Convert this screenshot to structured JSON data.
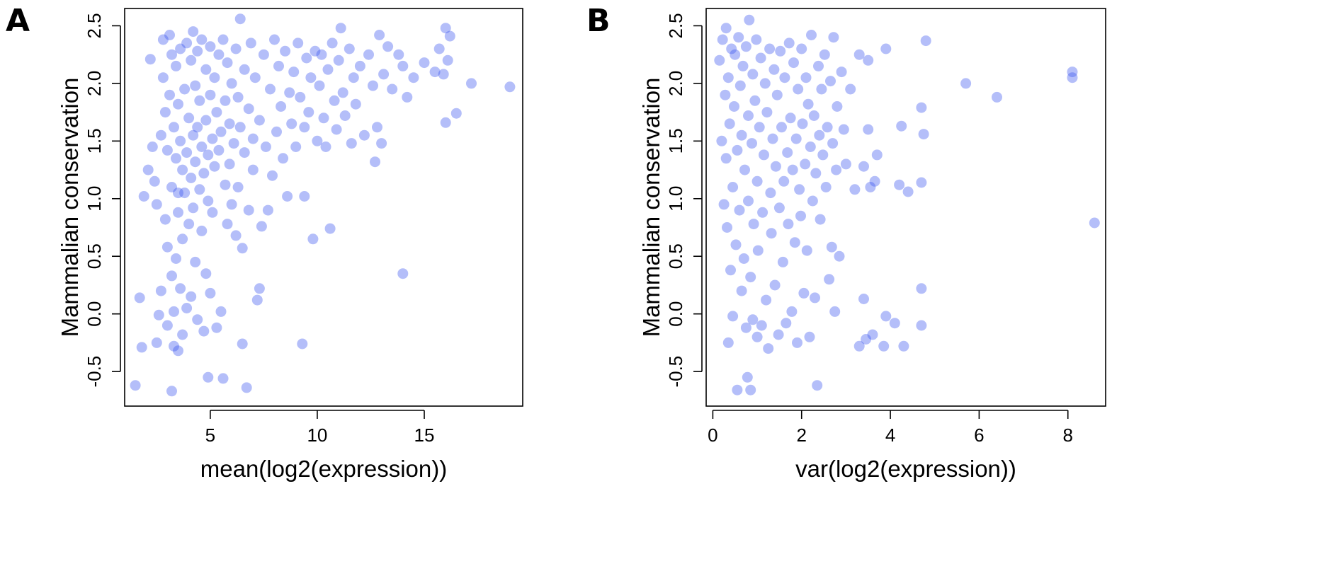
{
  "point_color": "#3b55f0",
  "chart_data": [
    {
      "type": "scatter",
      "panel_label": "A",
      "xlabel": "mean(log2(expression))",
      "ylabel": "Mammalian conservation",
      "xlim": [
        1.0,
        19.6
      ],
      "ylim": [
        -0.8,
        2.65
      ],
      "xticks": [
        5,
        10,
        15
      ],
      "yticks": [
        -0.5,
        0.0,
        0.5,
        1.0,
        1.5,
        2.0,
        2.5
      ],
      "ytick_labels": [
        "-0.5",
        "0.0",
        "0.5",
        "1.0",
        "1.5",
        "2.0",
        "2.5"
      ],
      "grid": false,
      "points": [
        [
          1.5,
          -0.62
        ],
        [
          1.8,
          -0.29
        ],
        [
          1.7,
          0.14
        ],
        [
          1.9,
          1.02
        ],
        [
          2.1,
          1.25
        ],
        [
          2.3,
          1.45
        ],
        [
          2.2,
          2.21
        ],
        [
          2.4,
          1.15
        ],
        [
          2.5,
          0.95
        ],
        [
          2.5,
          -0.25
        ],
        [
          2.6,
          -0.01
        ],
        [
          2.7,
          0.2
        ],
        [
          2.7,
          1.55
        ],
        [
          2.8,
          2.05
        ],
        [
          2.8,
          2.38
        ],
        [
          2.9,
          0.82
        ],
        [
          2.9,
          1.75
        ],
        [
          3.0,
          0.58
        ],
        [
          3.0,
          1.42
        ],
        [
          3.0,
          -0.1
        ],
        [
          3.1,
          2.42
        ],
        [
          3.1,
          1.9
        ],
        [
          3.2,
          0.33
        ],
        [
          3.2,
          1.1
        ],
        [
          3.2,
          2.25
        ],
        [
          3.2,
          -0.67
        ],
        [
          3.3,
          0.02
        ],
        [
          3.3,
          1.62
        ],
        [
          3.3,
          -0.28
        ],
        [
          3.4,
          0.48
        ],
        [
          3.4,
          1.35
        ],
        [
          3.4,
          2.15
        ],
        [
          3.5,
          0.88
        ],
        [
          3.5,
          1.82
        ],
        [
          3.5,
          -0.32
        ],
        [
          3.6,
          0.22
        ],
        [
          3.6,
          1.5
        ],
        [
          3.6,
          2.3
        ],
        [
          3.7,
          0.65
        ],
        [
          3.7,
          1.25
        ],
        [
          3.7,
          -0.18
        ],
        [
          3.8,
          1.95
        ],
        [
          3.8,
          1.05
        ],
        [
          3.9,
          2.35
        ],
        [
          3.9,
          0.05
        ],
        [
          3.9,
          1.4
        ],
        [
          4.0,
          0.78
        ],
        [
          4.0,
          1.7
        ],
        [
          4.1,
          2.2
        ],
        [
          4.1,
          0.15
        ],
        [
          4.1,
          1.18
        ],
        [
          4.2,
          1.55
        ],
        [
          4.2,
          2.45
        ],
        [
          4.2,
          0.92
        ],
        [
          4.3,
          1.32
        ],
        [
          4.3,
          1.98
        ],
        [
          4.3,
          0.45
        ],
        [
          4.4,
          1.62
        ],
        [
          4.4,
          2.28
        ],
        [
          4.4,
          -0.05
        ],
        [
          4.5,
          1.08
        ],
        [
          4.5,
          1.85
        ],
        [
          4.6,
          0.72
        ],
        [
          4.6,
          1.45
        ],
        [
          4.6,
          2.38
        ],
        [
          4.7,
          1.22
        ],
        [
          4.7,
          -0.15
        ],
        [
          4.8,
          2.12
        ],
        [
          4.8,
          0.35
        ],
        [
          4.8,
          1.68
        ],
        [
          4.9,
          0.98
        ],
        [
          4.9,
          1.38
        ],
        [
          4.9,
          -0.55
        ],
        [
          5.0,
          2.32
        ],
        [
          5.0,
          1.9
        ],
        [
          5.0,
          0.18
        ],
        [
          5.1,
          1.52
        ],
        [
          5.1,
          0.88
        ],
        [
          5.2,
          2.05
        ],
        [
          5.2,
          1.28
        ],
        [
          5.3,
          -0.12
        ],
        [
          5.3,
          1.75
        ],
        [
          5.4,
          2.25
        ],
        [
          5.4,
          1.42
        ],
        [
          5.5,
          0.02
        ],
        [
          5.5,
          1.58
        ],
        [
          5.6,
          -0.56
        ],
        [
          5.6,
          2.38
        ],
        [
          5.7,
          1.12
        ],
        [
          5.7,
          1.85
        ],
        [
          5.8,
          2.18
        ],
        [
          5.8,
          0.78
        ],
        [
          5.9,
          1.65
        ],
        [
          5.9,
          1.3
        ],
        [
          6.0,
          2.0
        ],
        [
          6.0,
          0.95
        ],
        [
          6.1,
          1.48
        ],
        [
          6.2,
          2.3
        ],
        [
          6.2,
          0.68
        ],
        [
          6.3,
          1.88
        ],
        [
          6.3,
          1.1
        ],
        [
          6.4,
          2.56
        ],
        [
          6.4,
          1.62
        ],
        [
          6.5,
          0.57
        ],
        [
          6.5,
          -0.26
        ],
        [
          6.6,
          2.12
        ],
        [
          6.6,
          1.4
        ],
        [
          6.7,
          -0.64
        ],
        [
          6.8,
          1.78
        ],
        [
          6.8,
          0.9
        ],
        [
          6.9,
          2.35
        ],
        [
          7.0,
          1.52
        ],
        [
          7.0,
          1.25
        ],
        [
          7.1,
          2.05
        ],
        [
          7.2,
          0.12
        ],
        [
          7.3,
          0.22
        ],
        [
          7.3,
          1.68
        ],
        [
          7.4,
          0.76
        ],
        [
          7.5,
          2.25
        ],
        [
          7.6,
          1.45
        ],
        [
          7.7,
          0.9
        ],
        [
          7.8,
          1.95
        ],
        [
          7.9,
          1.2
        ],
        [
          8.0,
          2.38
        ],
        [
          8.1,
          1.58
        ],
        [
          8.2,
          2.15
        ],
        [
          8.3,
          1.8
        ],
        [
          8.4,
          1.35
        ],
        [
          8.5,
          2.28
        ],
        [
          8.6,
          1.02
        ],
        [
          8.7,
          1.92
        ],
        [
          8.8,
          1.65
        ],
        [
          8.9,
          2.1
        ],
        [
          9.0,
          1.45
        ],
        [
          9.1,
          2.35
        ],
        [
          9.2,
          1.88
        ],
        [
          9.3,
          -0.26
        ],
        [
          9.4,
          1.02
        ],
        [
          9.4,
          1.62
        ],
        [
          9.5,
          2.22
        ],
        [
          9.6,
          1.75
        ],
        [
          9.7,
          2.05
        ],
        [
          9.8,
          0.65
        ],
        [
          9.9,
          2.28
        ],
        [
          10.0,
          1.5
        ],
        [
          10.1,
          1.98
        ],
        [
          10.2,
          2.25
        ],
        [
          10.3,
          1.7
        ],
        [
          10.4,
          1.45
        ],
        [
          10.5,
          2.12
        ],
        [
          10.6,
          0.74
        ],
        [
          10.7,
          2.35
        ],
        [
          10.8,
          1.85
        ],
        [
          10.9,
          1.6
        ],
        [
          11.0,
          2.2
        ],
        [
          11.1,
          2.48
        ],
        [
          11.2,
          1.92
        ],
        [
          11.3,
          1.72
        ],
        [
          11.5,
          2.3
        ],
        [
          11.6,
          1.48
        ],
        [
          11.7,
          2.05
        ],
        [
          11.8,
          1.82
        ],
        [
          12.0,
          2.15
        ],
        [
          12.2,
          1.55
        ],
        [
          12.4,
          2.25
        ],
        [
          12.6,
          1.98
        ],
        [
          12.7,
          1.32
        ],
        [
          12.8,
          1.62
        ],
        [
          12.9,
          2.42
        ],
        [
          13.0,
          1.48
        ],
        [
          13.1,
          2.08
        ],
        [
          13.3,
          2.32
        ],
        [
          13.5,
          1.95
        ],
        [
          13.8,
          2.25
        ],
        [
          14.0,
          2.15
        ],
        [
          14.0,
          0.35
        ],
        [
          14.2,
          1.88
        ],
        [
          14.5,
          2.05
        ],
        [
          15.0,
          2.18
        ],
        [
          15.5,
          2.1
        ],
        [
          15.7,
          2.3
        ],
        [
          15.9,
          2.08
        ],
        [
          16.0,
          2.48
        ],
        [
          16.1,
          2.2
        ],
        [
          16.0,
          1.66
        ],
        [
          16.2,
          2.41
        ],
        [
          16.5,
          1.74
        ],
        [
          17.2,
          2.0
        ],
        [
          19.0,
          1.97
        ],
        [
          3.5,
          1.05
        ]
      ]
    },
    {
      "type": "scatter",
      "panel_label": "B",
      "xlabel": "var(log2(expression))",
      "ylabel": "Mammalian conservation",
      "xlim": [
        -0.15,
        8.85
      ],
      "ylim": [
        -0.8,
        2.65
      ],
      "xticks": [
        0,
        2,
        4,
        6,
        8
      ],
      "yticks": [
        -0.5,
        0.0,
        0.5,
        1.0,
        1.5,
        2.0,
        2.5
      ],
      "ytick_labels": [
        "-0.5",
        "0.0",
        "0.5",
        "1.0",
        "1.5",
        "2.0",
        "2.5"
      ],
      "grid": false,
      "points": [
        [
          0.15,
          2.2
        ],
        [
          0.2,
          1.5
        ],
        [
          0.22,
          2.38
        ],
        [
          0.25,
          0.95
        ],
        [
          0.28,
          1.9
        ],
        [
          0.3,
          2.48
        ],
        [
          0.3,
          1.35
        ],
        [
          0.32,
          0.75
        ],
        [
          0.35,
          2.05
        ],
        [
          0.35,
          -0.25
        ],
        [
          0.38,
          1.65
        ],
        [
          0.4,
          0.38
        ],
        [
          0.42,
          2.3
        ],
        [
          0.45,
          1.1
        ],
        [
          0.45,
          -0.02
        ],
        [
          0.48,
          1.8
        ],
        [
          0.5,
          2.25
        ],
        [
          0.52,
          0.6
        ],
        [
          0.55,
          1.42
        ],
        [
          0.55,
          -0.66
        ],
        [
          0.58,
          2.4
        ],
        [
          0.6,
          0.9
        ],
        [
          0.62,
          1.98
        ],
        [
          0.65,
          0.2
        ],
        [
          0.65,
          1.55
        ],
        [
          0.68,
          2.15
        ],
        [
          0.7,
          0.48
        ],
        [
          0.72,
          1.25
        ],
        [
          0.75,
          2.32
        ],
        [
          0.75,
          -0.12
        ],
        [
          0.78,
          -0.55
        ],
        [
          0.8,
          1.72
        ],
        [
          0.8,
          0.98
        ],
        [
          0.82,
          2.55
        ],
        [
          0.85,
          -0.66
        ],
        [
          0.85,
          0.32
        ],
        [
          0.88,
          1.48
        ],
        [
          0.9,
          2.08
        ],
        [
          0.9,
          -0.05
        ],
        [
          0.92,
          0.78
        ],
        [
          0.95,
          1.85
        ],
        [
          0.98,
          2.38
        ],
        [
          1.0,
          1.15
        ],
        [
          1.0,
          -0.2
        ],
        [
          1.02,
          0.55
        ],
        [
          1.05,
          1.62
        ],
        [
          1.08,
          2.22
        ],
        [
          1.1,
          -0.1
        ],
        [
          1.12,
          0.88
        ],
        [
          1.15,
          1.38
        ],
        [
          1.18,
          2.0
        ],
        [
          1.2,
          0.12
        ],
        [
          1.22,
          1.75
        ],
        [
          1.25,
          -0.3
        ],
        [
          1.28,
          2.3
        ],
        [
          1.3,
          1.05
        ],
        [
          1.32,
          0.7
        ],
        [
          1.35,
          1.52
        ],
        [
          1.38,
          2.12
        ],
        [
          1.4,
          0.25
        ],
        [
          1.42,
          1.28
        ],
        [
          1.45,
          1.9
        ],
        [
          1.48,
          -0.18
        ],
        [
          1.5,
          0.92
        ],
        [
          1.52,
          2.28
        ],
        [
          1.55,
          1.62
        ],
        [
          1.58,
          0.45
        ],
        [
          1.6,
          1.15
        ],
        [
          1.62,
          2.05
        ],
        [
          1.65,
          -0.08
        ],
        [
          1.68,
          1.4
        ],
        [
          1.7,
          0.78
        ],
        [
          1.72,
          2.35
        ],
        [
          1.75,
          1.7
        ],
        [
          1.78,
          0.02
        ],
        [
          1.8,
          1.25
        ],
        [
          1.82,
          2.18
        ],
        [
          1.85,
          0.62
        ],
        [
          1.88,
          1.52
        ],
        [
          1.9,
          -0.25
        ],
        [
          1.92,
          1.95
        ],
        [
          1.95,
          1.08
        ],
        [
          1.98,
          0.85
        ],
        [
          2.0,
          2.3
        ],
        [
          2.02,
          1.65
        ],
        [
          2.05,
          0.18
        ],
        [
          2.08,
          1.3
        ],
        [
          2.1,
          2.05
        ],
        [
          2.12,
          0.55
        ],
        [
          2.15,
          1.82
        ],
        [
          2.18,
          -0.2
        ],
        [
          2.2,
          1.45
        ],
        [
          2.22,
          2.42
        ],
        [
          2.25,
          0.98
        ],
        [
          2.28,
          1.72
        ],
        [
          2.3,
          0.14
        ],
        [
          2.32,
          1.22
        ],
        [
          2.35,
          -0.62
        ],
        [
          2.38,
          2.15
        ],
        [
          2.4,
          1.55
        ],
        [
          2.42,
          0.82
        ],
        [
          2.45,
          1.95
        ],
        [
          2.48,
          1.38
        ],
        [
          2.52,
          2.25
        ],
        [
          2.55,
          1.1
        ],
        [
          2.58,
          1.62
        ],
        [
          2.62,
          0.3
        ],
        [
          2.65,
          2.02
        ],
        [
          2.68,
          0.58
        ],
        [
          2.7,
          1.48
        ],
        [
          2.72,
          2.4
        ],
        [
          2.75,
          0.02
        ],
        [
          2.78,
          1.25
        ],
        [
          2.8,
          1.8
        ],
        [
          2.85,
          0.5
        ],
        [
          2.9,
          2.1
        ],
        [
          2.95,
          1.6
        ],
        [
          3.0,
          1.3
        ],
        [
          3.1,
          1.95
        ],
        [
          3.2,
          1.08
        ],
        [
          3.3,
          2.25
        ],
        [
          3.3,
          -0.28
        ],
        [
          3.4,
          1.28
        ],
        [
          3.4,
          0.13
        ],
        [
          3.45,
          -0.22
        ],
        [
          3.5,
          1.6
        ],
        [
          3.5,
          2.2
        ],
        [
          3.55,
          1.1
        ],
        [
          3.6,
          -0.18
        ],
        [
          3.65,
          1.15
        ],
        [
          3.7,
          1.38
        ],
        [
          3.85,
          -0.28
        ],
        [
          3.9,
          -0.02
        ],
        [
          3.9,
          2.3
        ],
        [
          4.1,
          -0.08
        ],
        [
          4.2,
          1.12
        ],
        [
          4.25,
          1.63
        ],
        [
          4.3,
          -0.28
        ],
        [
          4.4,
          1.06
        ],
        [
          4.7,
          1.79
        ],
        [
          4.7,
          0.22
        ],
        [
          4.7,
          -0.1
        ],
        [
          4.7,
          1.14
        ],
        [
          4.75,
          1.56
        ],
        [
          4.8,
          2.37
        ],
        [
          5.7,
          2.0
        ],
        [
          6.4,
          1.88
        ],
        [
          8.1,
          2.1
        ],
        [
          8.1,
          2.05
        ],
        [
          8.6,
          0.79
        ]
      ]
    }
  ]
}
